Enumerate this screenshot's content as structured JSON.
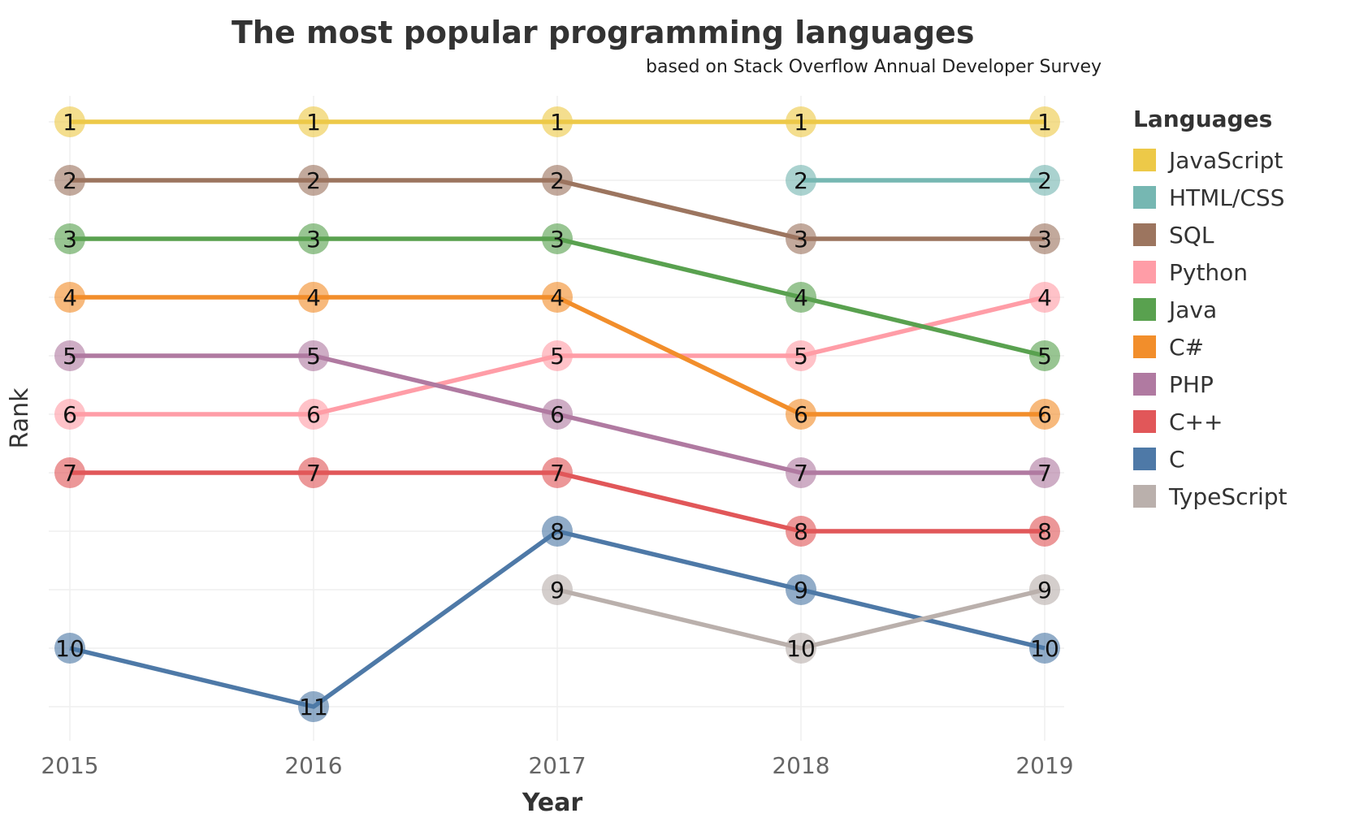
{
  "chart_data": {
    "type": "line",
    "title": "The most popular programming languages",
    "subtitle": "based on Stack Overflow Annual Developer Survey",
    "xlabel": "Year",
    "ylabel": "Rank",
    "x": [
      "2015",
      "2016",
      "2017",
      "2018",
      "2019"
    ],
    "ylim": [
      1,
      11
    ],
    "y_reversed": true,
    "grid": true,
    "legend": {
      "title": "Languages",
      "position": "right"
    },
    "series": [
      {
        "name": "JavaScript",
        "color": "#EDC948",
        "values": [
          1,
          1,
          1,
          1,
          1
        ]
      },
      {
        "name": "HTML/CSS",
        "color": "#76B7B2",
        "values": [
          null,
          null,
          null,
          2,
          2
        ]
      },
      {
        "name": "SQL",
        "color": "#9C755F",
        "values": [
          2,
          2,
          2,
          3,
          3
        ]
      },
      {
        "name": "Python",
        "color": "#FF9DA7",
        "values": [
          6,
          6,
          5,
          5,
          4
        ]
      },
      {
        "name": "Java",
        "color": "#59A14F",
        "values": [
          3,
          3,
          3,
          4,
          5
        ]
      },
      {
        "name": "C#",
        "color": "#F28E2B",
        "values": [
          4,
          4,
          4,
          6,
          6
        ]
      },
      {
        "name": "PHP",
        "color": "#B07AA1",
        "values": [
          5,
          5,
          6,
          7,
          7
        ]
      },
      {
        "name": "C++",
        "color": "#E15759",
        "values": [
          7,
          7,
          7,
          8,
          8
        ]
      },
      {
        "name": "C",
        "color": "#4E79A7",
        "values": [
          10,
          11,
          8,
          9,
          10
        ]
      },
      {
        "name": "TypeScript",
        "color": "#BAB0AC",
        "values": [
          null,
          null,
          9,
          10,
          9
        ]
      }
    ]
  }
}
